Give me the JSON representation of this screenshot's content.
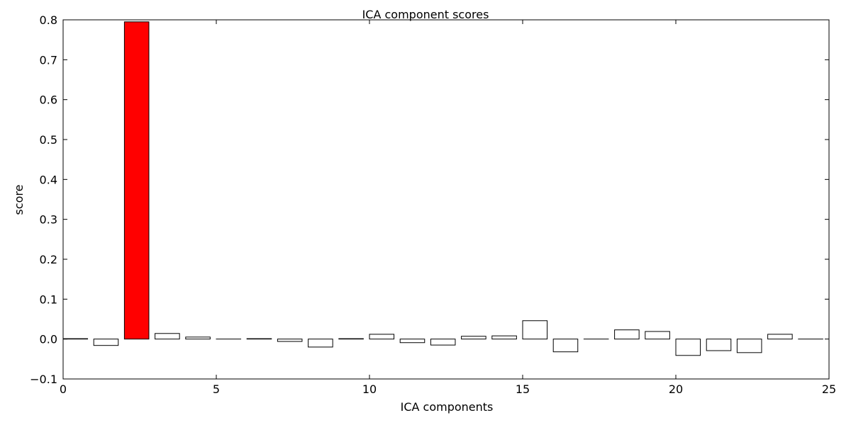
{
  "chart_data": {
    "type": "bar",
    "title": "ICA component scores",
    "xlabel": "ICA components",
    "ylabel": "score",
    "xlim": [
      0,
      25
    ],
    "ylim": [
      -0.1,
      0.8
    ],
    "xticks": [
      0,
      5,
      10,
      15,
      20,
      25
    ],
    "xtick_labels": [
      "0",
      "5",
      "10",
      "15",
      "20",
      "25"
    ],
    "yticks": [
      -0.1,
      0.0,
      0.1,
      0.2,
      0.3,
      0.4,
      0.5,
      0.6,
      0.7,
      0.8
    ],
    "ytick_labels": [
      "−0.1",
      "0.0",
      "0.1",
      "0.2",
      "0.3",
      "0.4",
      "0.5",
      "0.6",
      "0.7",
      "0.8"
    ],
    "bar_width": 0.8,
    "x": [
      0,
      1,
      2,
      3,
      4,
      5,
      6,
      7,
      8,
      9,
      10,
      11,
      12,
      13,
      14,
      15,
      16,
      17,
      18,
      19,
      20,
      21,
      22,
      23,
      24
    ],
    "values": [
      0.001,
      -0.016,
      0.795,
      0.014,
      0.005,
      0.0,
      0.001,
      -0.006,
      -0.02,
      0.001,
      0.012,
      -0.009,
      -0.015,
      0.007,
      0.008,
      0.046,
      -0.032,
      0.0,
      0.023,
      0.019,
      -0.041,
      -0.029,
      -0.034,
      0.012,
      0.0
    ],
    "highlighted_index": 2,
    "grid": false,
    "colors": {
      "default_fill": "#ffffff",
      "highlight_fill": "#ff0000",
      "edge": "#000000"
    }
  }
}
